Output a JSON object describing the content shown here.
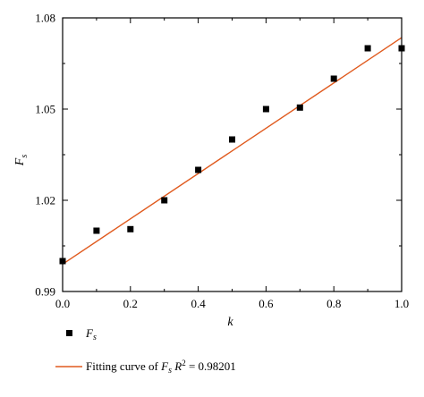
{
  "chart_data": {
    "type": "scatter",
    "xlabel": "k",
    "ylabel": "F_s",
    "xlim": [
      0.0,
      1.0
    ],
    "ylim": [
      0.99,
      1.08
    ],
    "x_ticks": [
      "0.0",
      "0.2",
      "0.4",
      "0.6",
      "0.8",
      "1.0"
    ],
    "y_ticks": [
      "0.99",
      "1.02",
      "1.05",
      "1.08"
    ],
    "series": [
      {
        "name": "F_s",
        "kind": "scatter",
        "marker": "square",
        "color": "#000000",
        "x": [
          0.0,
          0.1,
          0.2,
          0.3,
          0.4,
          0.5,
          0.6,
          0.7,
          0.8,
          0.9,
          1.0
        ],
        "y": [
          1.0,
          1.01,
          1.0105,
          1.02,
          1.03,
          1.04,
          1.05,
          1.0505,
          1.06,
          1.07,
          1.07
        ]
      },
      {
        "name": "Fitting curve of F_s R^2 = 0.98201",
        "kind": "line",
        "color": "#e05a1e",
        "x": [
          0.0,
          1.0
        ],
        "y": [
          0.999,
          1.0735
        ]
      }
    ],
    "legend": {
      "placement": "bottom",
      "entries": [
        {
          "main": "F",
          "sub": "s"
        },
        {
          "prefix": "Fitting curve of ",
          "main": "F",
          "sub": "s",
          "r": "R",
          "sup": "2",
          "suffix": " = 0.98201"
        }
      ]
    },
    "grid": false
  }
}
